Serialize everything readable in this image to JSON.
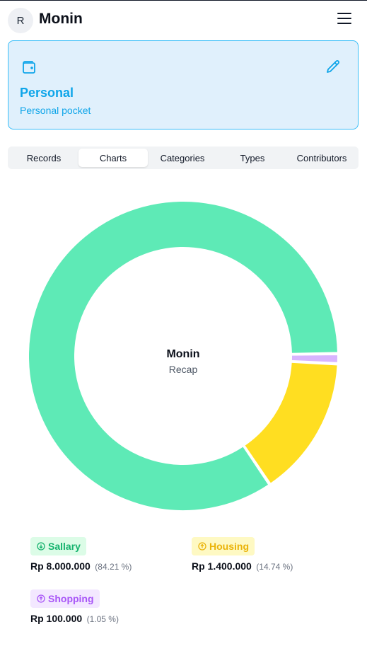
{
  "header": {
    "avatar_initial": "R",
    "title": "Monin"
  },
  "pocket": {
    "name": "Personal",
    "description": "Personal pocket"
  },
  "tabs": [
    {
      "label": "Records",
      "active": false
    },
    {
      "label": "Charts",
      "active": true
    },
    {
      "label": "Categories",
      "active": false
    },
    {
      "label": "Types",
      "active": false
    },
    {
      "label": "Contributors",
      "active": false
    }
  ],
  "colors": {
    "accent": "#0ea5e9",
    "card_bg": "#e0f0fc",
    "income": "#5eeab6",
    "housing": "#ffde21",
    "shopping": "#d8b4fe"
  },
  "chart_data": {
    "type": "pie",
    "title": "Monin",
    "subtitle": "Recap",
    "series": [
      {
        "name": "Sallary",
        "value": 8000000,
        "amount_label": "Rp 8.000.000",
        "percent_label": "(84.21 %)",
        "color": "#5eeab6",
        "label_color": "#16b36e",
        "badge_bg": "#dcfce7",
        "direction": "in"
      },
      {
        "name": "Housing",
        "value": 1400000,
        "amount_label": "Rp 1.400.000",
        "percent_label": "(14.74 %)",
        "color": "#ffde21",
        "label_color": "#eab308",
        "badge_bg": "#fef9c3",
        "direction": "out"
      },
      {
        "name": "Shopping",
        "value": 100000,
        "amount_label": "Rp 100.000",
        "percent_label": "(1.05 %)",
        "color": "#d8b4fe",
        "label_color": "#a855f7",
        "badge_bg": "#f3e8ff",
        "direction": "out"
      }
    ]
  }
}
